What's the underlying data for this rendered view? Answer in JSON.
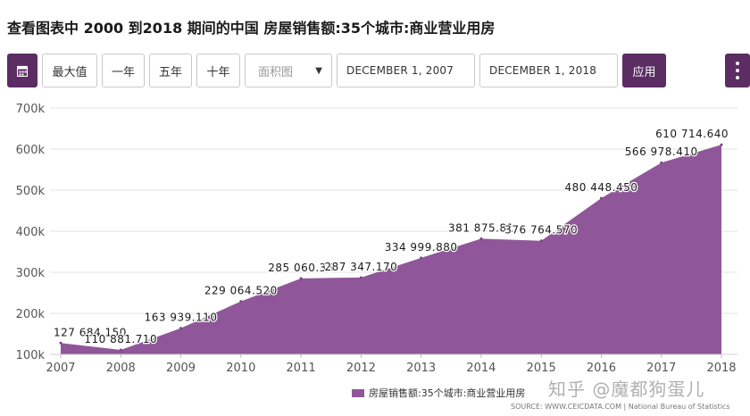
{
  "title": "查看图表中 2000 到2018 期间的中国 房屋销售额:35个城市:商业营业用房",
  "toolbar": {
    "calendar_icon": "calendar-icon",
    "max_label": "最大值",
    "one_year_label": "一年",
    "five_year_label": "五年",
    "ten_year_label": "十年",
    "chart_type_value": "面积图",
    "start_date": "DECEMBER 1, 2007",
    "end_date": "DECEMBER 1, 2018",
    "apply_label": "应用",
    "menu_icon": "kebab-menu-icon"
  },
  "colors": {
    "accent": "#5b2d63",
    "area_fill": "#8f5799",
    "grid": "#e3e3e3"
  },
  "chart_data": {
    "type": "area",
    "x": [
      "2007",
      "2008",
      "2009",
      "2010",
      "2011",
      "2012",
      "2013",
      "2014",
      "2015",
      "2016",
      "2017",
      "2018"
    ],
    "series": [
      {
        "name": "房屋销售额:35个城市:商业营业用房",
        "values": [
          127684.15,
          110881.71,
          163939.11,
          229064.52,
          285060.35,
          287347.17,
          334999.88,
          381875.81,
          376764.57,
          480448.45,
          566978.41,
          610714.64
        ],
        "labels": [
          "127 684.150",
          "110 881.710",
          "163 939.110",
          "229 064.520",
          "285 060.35",
          "287 347.170",
          "334 999.880",
          "381 875.81",
          "376 764.570",
          "480 448.450",
          "566 978.410",
          "610 714.640"
        ]
      }
    ],
    "ylim": [
      100000,
      700000
    ],
    "yticks": [
      100000,
      200000,
      300000,
      400000,
      500000,
      600000,
      700000
    ],
    "ytick_labels": [
      "100k",
      "200k",
      "300k",
      "400k",
      "500k",
      "600k",
      "700k"
    ],
    "grid": true,
    "legend": "bottom-right"
  },
  "legend_label": "房屋销售额:35个城市:商业营业用房",
  "source": "SOURCE: WWW.CEICDATA.COM | National Bureau of Statistics",
  "watermark": "知乎 @魔都狗蛋儿"
}
